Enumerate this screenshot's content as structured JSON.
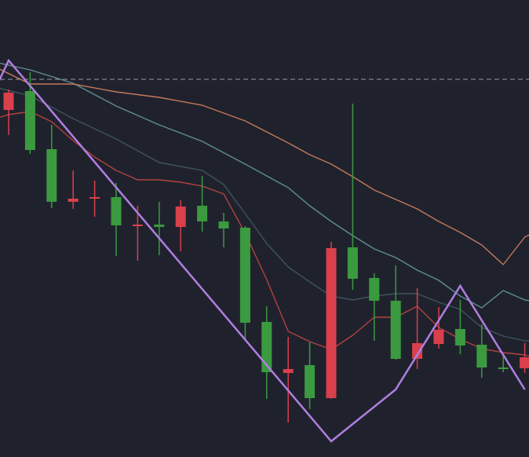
{
  "colors": {
    "background": "#1f222d",
    "up": "#3b9a3f",
    "down": "#d9404c",
    "zigzag": "#b07ee0",
    "dashed_level": "#9a9ca6",
    "ma_fast": "#b3423f",
    "ma_mid": "#3e5360",
    "ma_slow": "#5f8d91",
    "ma_slowest": "#c4785a"
  },
  "chart_data": {
    "type": "candlestick",
    "title": "",
    "xlabel": "",
    "ylabel": "",
    "ylim": [
      0,
      582
    ],
    "grid": false,
    "candles": [
      {
        "i": 0,
        "open": 464,
        "close": 442,
        "high": 468,
        "low": 410
      },
      {
        "i": 1,
        "open": 391,
        "close": 466,
        "high": 490,
        "low": 386
      },
      {
        "i": 2,
        "open": 325,
        "close": 392,
        "high": 423,
        "low": 317
      },
      {
        "i": 3,
        "open": 329,
        "close": 325,
        "high": 365,
        "low": 316
      },
      {
        "i": 4,
        "open": 331,
        "close": 330,
        "high": 352,
        "low": 306
      },
      {
        "i": 5,
        "open": 295,
        "close": 331,
        "high": 349,
        "low": 256
      },
      {
        "i": 6,
        "open": 296,
        "close": 294,
        "high": 320,
        "low": 250
      },
      {
        "i": 7,
        "open": 293,
        "close": 296,
        "high": 325,
        "low": 257
      },
      {
        "i": 8,
        "open": 319,
        "close": 293,
        "high": 327,
        "low": 262
      },
      {
        "i": 9,
        "open": 300,
        "close": 320,
        "high": 358,
        "low": 287
      },
      {
        "i": 10,
        "open": 291,
        "close": 300,
        "high": 311,
        "low": 267
      },
      {
        "i": 11,
        "open": 171,
        "close": 292,
        "high": 294,
        "low": 150
      },
      {
        "i": 12,
        "open": 108,
        "close": 172,
        "high": 192,
        "low": 74
      },
      {
        "i": 13,
        "open": 112,
        "close": 107,
        "high": 153,
        "low": 44
      },
      {
        "i": 14,
        "open": 75,
        "close": 117,
        "high": 146,
        "low": 61
      },
      {
        "i": 15,
        "open": 266,
        "close": 75,
        "high": 274,
        "low": 74
      },
      {
        "i": 16,
        "open": 227,
        "close": 267,
        "high": 450,
        "low": 213
      },
      {
        "i": 17,
        "open": 199,
        "close": 228,
        "high": 234,
        "low": 148
      },
      {
        "i": 18,
        "open": 125,
        "close": 199,
        "high": 244,
        "low": 124
      },
      {
        "i": 19,
        "open": 145,
        "close": 125,
        "high": 215,
        "low": 112
      },
      {
        "i": 20,
        "open": 162,
        "close": 144,
        "high": 191,
        "low": 138
      },
      {
        "i": 21,
        "open": 142,
        "close": 163,
        "high": 200,
        "low": 131
      },
      {
        "i": 22,
        "open": 114,
        "close": 143,
        "high": 169,
        "low": 101
      },
      {
        "i": 23,
        "open": 114,
        "close": 114,
        "high": 131,
        "low": 108
      },
      {
        "i": 24,
        "open": 127,
        "close": 113,
        "high": 145,
        "low": 107
      }
    ],
    "zigzag": [
      [
        -0.5,
        476
      ],
      [
        0,
        505
      ],
      [
        15,
        20
      ],
      [
        18,
        86
      ],
      [
        21,
        218
      ],
      [
        24,
        86
      ]
    ],
    "horizontal_level": 481,
    "moving_averages": [
      {
        "key": "ma_fast",
        "points": [
          [
            -0.5,
            432
          ],
          [
            0,
            436
          ],
          [
            1,
            440
          ],
          [
            2,
            427
          ],
          [
            3,
            403
          ],
          [
            4,
            382
          ],
          [
            5,
            365
          ],
          [
            6,
            353
          ],
          [
            7,
            353
          ],
          [
            8,
            350
          ],
          [
            9,
            345
          ],
          [
            10,
            335
          ],
          [
            11,
            285
          ],
          [
            12,
            226
          ],
          [
            13,
            160
          ],
          [
            14,
            147
          ],
          [
            15,
            137
          ],
          [
            16,
            155
          ],
          [
            17,
            178
          ],
          [
            18,
            178
          ],
          [
            19,
            192
          ],
          [
            20,
            165
          ],
          [
            21,
            150
          ],
          [
            22,
            138
          ],
          [
            23,
            133
          ],
          [
            24,
            130
          ],
          [
            24.5,
            127
          ]
        ]
      },
      {
        "key": "ma_mid",
        "points": [
          [
            -0.5,
            470
          ],
          [
            1,
            460
          ],
          [
            3,
            431
          ],
          [
            5,
            405
          ],
          [
            7,
            375
          ],
          [
            9,
            365
          ],
          [
            10,
            347
          ],
          [
            11,
            310
          ],
          [
            12,
            272
          ],
          [
            13,
            242
          ],
          [
            14,
            223
          ],
          [
            15,
            205
          ],
          [
            16,
            200
          ],
          [
            17,
            205
          ],
          [
            18,
            208
          ],
          [
            19,
            208
          ],
          [
            20,
            197
          ],
          [
            21,
            188
          ],
          [
            22,
            165
          ],
          [
            23,
            154
          ],
          [
            24,
            148
          ],
          [
            24.5,
            147
          ]
        ]
      },
      {
        "key": "ma_slow",
        "points": [
          [
            -0.5,
            502
          ],
          [
            1,
            493
          ],
          [
            3,
            476
          ],
          [
            5,
            447
          ],
          [
            7,
            423
          ],
          [
            9,
            402
          ],
          [
            11,
            373
          ],
          [
            13,
            343
          ],
          [
            14,
            320
          ],
          [
            15,
            300
          ],
          [
            16,
            282
          ],
          [
            17,
            265
          ],
          [
            18,
            254
          ],
          [
            19,
            238
          ],
          [
            20,
            225
          ],
          [
            21,
            205
          ],
          [
            22,
            190
          ],
          [
            23,
            212
          ],
          [
            24,
            200
          ],
          [
            24.5,
            198
          ]
        ]
      },
      {
        "key": "ma_slowest",
        "points": [
          [
            -0.5,
            495
          ],
          [
            1,
            475
          ],
          [
            3,
            475
          ],
          [
            5,
            465
          ],
          [
            7,
            458
          ],
          [
            9,
            448
          ],
          [
            11,
            428
          ],
          [
            13,
            400
          ],
          [
            14,
            385
          ],
          [
            15,
            373
          ],
          [
            16,
            357
          ],
          [
            17,
            340
          ],
          [
            18,
            328
          ],
          [
            19,
            316
          ],
          [
            20,
            300
          ],
          [
            21,
            286
          ],
          [
            22,
            270
          ],
          [
            23,
            245
          ],
          [
            24,
            280
          ],
          [
            24.5,
            287
          ]
        ]
      }
    ]
  }
}
